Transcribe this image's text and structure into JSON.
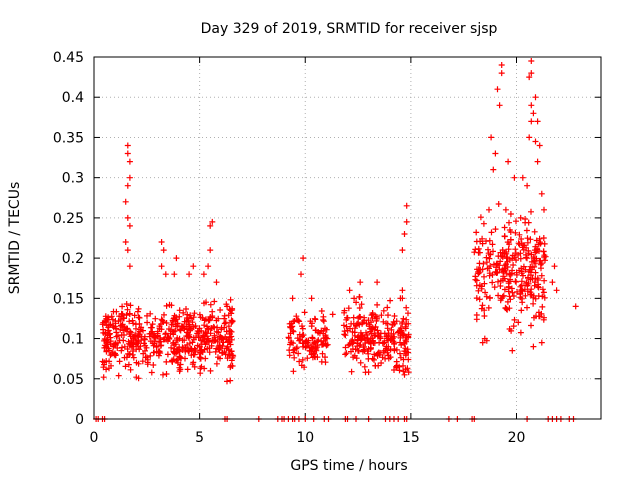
{
  "chart_data": {
    "type": "scatter",
    "title": "Day 329 of 2019, SRMTID for receiver sjsp",
    "xlabel": "GPS time / hours",
    "ylabel": "SRMTID / TECUs",
    "xlim": [
      0,
      24
    ],
    "ylim": [
      0,
      0.45
    ],
    "x_ticks": [
      0,
      5,
      10,
      15,
      20
    ],
    "y_ticks": [
      0,
      0.05,
      0.1,
      0.15,
      0.2,
      0.25,
      0.3,
      0.35,
      0.4,
      0.45
    ],
    "grid": true,
    "marker": "+",
    "series": [
      {
        "name": "SRMTID",
        "color": "#ff0000",
        "clusters": [
          {
            "x_range": [
              0.4,
              6.6
            ],
            "y_range": [
              0.04,
              0.16
            ],
            "count": 560
          },
          {
            "x_range": [
              9.2,
              11.1
            ],
            "y_range": [
              0.05,
              0.15
            ],
            "count": 120
          },
          {
            "x_range": [
              11.8,
              14.9
            ],
            "y_range": [
              0.04,
              0.16
            ],
            "count": 260
          },
          {
            "x_range": [
              18.0,
              21.4
            ],
            "y_range": [
              0.09,
              0.28
            ],
            "count": 300
          }
        ],
        "points": [
          [
            1.6,
            0.34
          ],
          [
            1.6,
            0.33
          ],
          [
            1.7,
            0.32
          ],
          [
            1.7,
            0.3
          ],
          [
            1.6,
            0.29
          ],
          [
            1.5,
            0.27
          ],
          [
            1.6,
            0.25
          ],
          [
            1.7,
            0.24
          ],
          [
            1.5,
            0.22
          ],
          [
            1.6,
            0.21
          ],
          [
            1.7,
            0.19
          ],
          [
            3.2,
            0.22
          ],
          [
            3.3,
            0.21
          ],
          [
            3.2,
            0.19
          ],
          [
            3.4,
            0.18
          ],
          [
            3.9,
            0.2
          ],
          [
            3.8,
            0.18
          ],
          [
            4.7,
            0.19
          ],
          [
            4.5,
            0.18
          ],
          [
            5.6,
            0.245
          ],
          [
            5.5,
            0.24
          ],
          [
            5.5,
            0.21
          ],
          [
            5.4,
            0.19
          ],
          [
            5.2,
            0.18
          ],
          [
            5.8,
            0.17
          ],
          [
            6.3,
            0.14
          ],
          [
            9.9,
            0.2
          ],
          [
            9.8,
            0.18
          ],
          [
            9.4,
            0.15
          ],
          [
            10.3,
            0.15
          ],
          [
            11.3,
            0.13
          ],
          [
            12.6,
            0.17
          ],
          [
            12.1,
            0.16
          ],
          [
            13.4,
            0.17
          ],
          [
            14.6,
            0.16
          ],
          [
            14.8,
            0.265
          ],
          [
            14.8,
            0.245
          ],
          [
            14.7,
            0.23
          ],
          [
            14.6,
            0.21
          ],
          [
            14.6,
            0.15
          ],
          [
            14.7,
            0.055
          ],
          [
            19.3,
            0.44
          ],
          [
            19.3,
            0.43
          ],
          [
            19.1,
            0.41
          ],
          [
            19.2,
            0.39
          ],
          [
            20.7,
            0.445
          ],
          [
            20.7,
            0.43
          ],
          [
            20.6,
            0.425
          ],
          [
            20.9,
            0.4
          ],
          [
            20.7,
            0.39
          ],
          [
            20.8,
            0.38
          ],
          [
            20.7,
            0.37
          ],
          [
            21.0,
            0.37
          ],
          [
            20.6,
            0.35
          ],
          [
            20.9,
            0.345
          ],
          [
            21.1,
            0.34
          ],
          [
            18.8,
            0.35
          ],
          [
            19.0,
            0.33
          ],
          [
            19.6,
            0.32
          ],
          [
            18.9,
            0.31
          ],
          [
            21.0,
            0.32
          ],
          [
            20.3,
            0.3
          ],
          [
            19.9,
            0.3
          ],
          [
            20.5,
            0.29
          ],
          [
            21.2,
            0.28
          ],
          [
            18.7,
            0.26
          ],
          [
            19.5,
            0.26
          ],
          [
            21.3,
            0.26
          ],
          [
            20.2,
            0.25
          ],
          [
            21.8,
            0.19
          ],
          [
            21.7,
            0.17
          ],
          [
            21.9,
            0.16
          ],
          [
            22.8,
            0.14
          ],
          [
            21.2,
            0.095
          ],
          [
            20.8,
            0.09
          ],
          [
            19.8,
            0.085
          ],
          [
            18.5,
            0.1
          ],
          [
            18.4,
            0.095
          ]
        ],
        "zero_points_x": [
          0.1,
          0.2,
          0.4,
          0.5,
          6.2,
          6.3,
          7.8,
          8.7,
          8.9,
          9.0,
          9.2,
          9.4,
          9.5,
          9.7,
          10.0,
          10.4,
          10.9,
          11.1,
          11.9,
          12.0,
          12.4,
          13.0,
          13.8,
          14.0,
          14.2,
          14.4,
          14.7,
          14.8,
          16.8,
          17.2,
          17.9,
          18.0,
          20.5,
          21.5,
          21.7,
          21.9,
          22.1,
          22.5,
          22.7
        ]
      }
    ]
  }
}
